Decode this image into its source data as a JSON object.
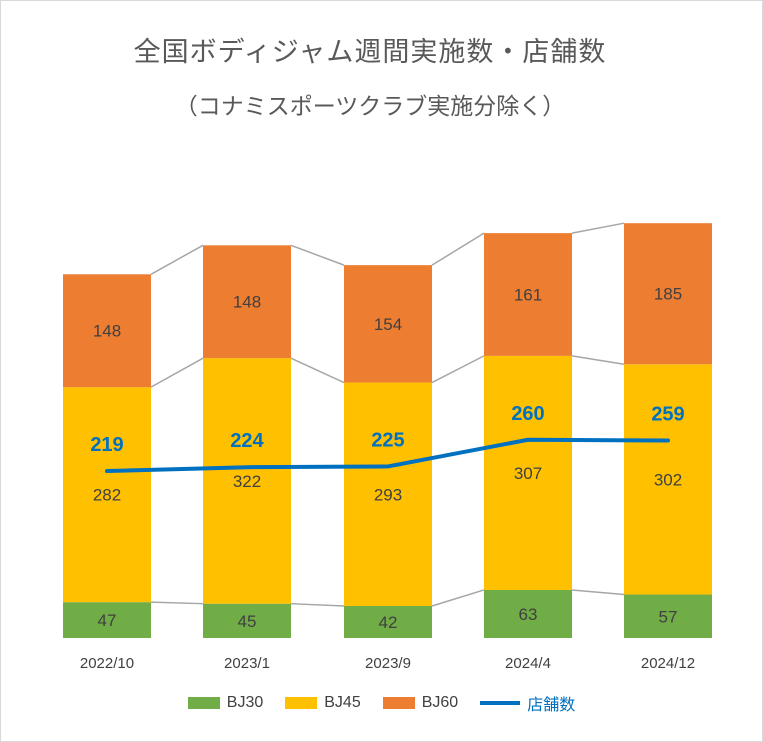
{
  "title": "全国ボディジャム週間実施数・店舗数",
  "subtitle": "（コナミスポーツクラブ実施分除く）",
  "chart_data": {
    "type": "bar",
    "stacked": true,
    "categories": [
      "2022/10",
      "2023/1",
      "2023/9",
      "2024/4",
      "2024/12"
    ],
    "series": [
      {
        "name": "BJ30",
        "type": "bar",
        "color": "#70ad47",
        "values": [
          47,
          45,
          42,
          63,
          57
        ]
      },
      {
        "name": "BJ45",
        "type": "bar",
        "color": "#ffc000",
        "values": [
          282,
          322,
          293,
          307,
          302
        ]
      },
      {
        "name": "BJ60",
        "type": "bar",
        "color": "#ed7d31",
        "values": [
          148,
          148,
          154,
          161,
          185
        ]
      },
      {
        "name": "店舗数",
        "type": "line",
        "color": "#0070c0",
        "values": [
          219,
          224,
          225,
          260,
          259
        ]
      }
    ],
    "series_lines": true,
    "legend_position": "bottom",
    "grid": false
  }
}
